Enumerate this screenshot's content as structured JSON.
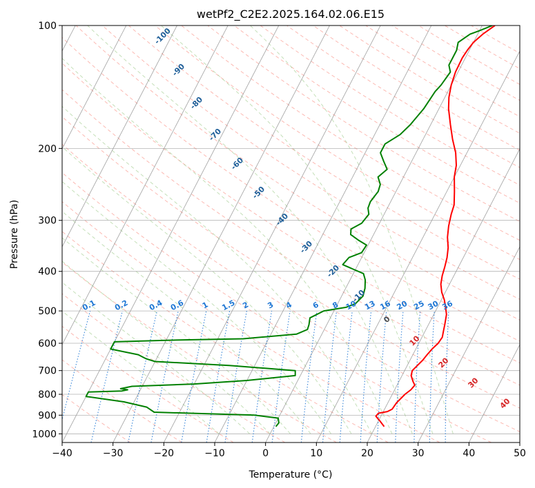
{
  "chart_data": {
    "type": "line",
    "title": "wetPf2_C2E2.2025.164.02.06.E15",
    "xlabel": "Temperature (°C)",
    "ylabel": "Pressure (hPa)",
    "xlim": [
      -40,
      50
    ],
    "ylim": [
      1050,
      100
    ],
    "y_scale": "log",
    "x_ticks": [
      "−40",
      "−30",
      "−20",
      "−10",
      "0",
      "10",
      "20",
      "30",
      "40",
      "50"
    ],
    "x_tick_values": [
      -40,
      -30,
      -20,
      -10,
      0,
      10,
      20,
      30,
      40,
      50
    ],
    "y_ticks": [
      "100",
      "200",
      "300",
      "400",
      "500",
      "600",
      "700",
      "800",
      "900",
      "1000"
    ],
    "y_tick_values": [
      100,
      200,
      300,
      400,
      500,
      600,
      700,
      800,
      900,
      1000
    ],
    "grid": true,
    "series": [
      {
        "color": "#ff0000",
        "points": [
          [
            21.7,
            960
          ],
          [
            20.3,
            930
          ],
          [
            19.0,
            905
          ],
          [
            19.2,
            890
          ],
          [
            20.8,
            882
          ],
          [
            21.5,
            870
          ],
          [
            21.7,
            840
          ],
          [
            22.5,
            800
          ],
          [
            23.2,
            780
          ],
          [
            23.5,
            760
          ],
          [
            22.8,
            745
          ],
          [
            21.8,
            720
          ],
          [
            21.5,
            700
          ],
          [
            22.0,
            680
          ],
          [
            22.5,
            660
          ],
          [
            22.8,
            640
          ],
          [
            23.2,
            620
          ],
          [
            23.8,
            600
          ],
          [
            24.0,
            580
          ],
          [
            23.6,
            560
          ],
          [
            23.2,
            540
          ],
          [
            22.5,
            510
          ],
          [
            21.6,
            490
          ],
          [
            20.6,
            470
          ],
          [
            19.3,
            450
          ],
          [
            18.3,
            430
          ],
          [
            17.7,
            410
          ],
          [
            17.3,
            390
          ],
          [
            16.8,
            370
          ],
          [
            16.0,
            350
          ],
          [
            14.8,
            330
          ],
          [
            13.9,
            310
          ],
          [
            13.2,
            290
          ],
          [
            12.8,
            275
          ],
          [
            11.5,
            255
          ],
          [
            10.0,
            235
          ],
          [
            9.2,
            220
          ],
          [
            7.8,
            205
          ],
          [
            5.8,
            190
          ],
          [
            3.9,
            175
          ],
          [
            1.9,
            160
          ],
          [
            0.8,
            150
          ],
          [
            0.0,
            140
          ],
          [
            -0.5,
            130
          ],
          [
            -0.6,
            120
          ],
          [
            -0.4,
            115
          ],
          [
            0.0,
            110
          ],
          [
            1.0,
            105
          ],
          [
            2.5,
            100
          ]
        ]
      },
      {
        "color": "#008000",
        "points": [
          [
            0.4,
            960
          ],
          [
            0.6,
            940
          ],
          [
            0.0,
            915
          ],
          [
            -5.0,
            900
          ],
          [
            -25.0,
            885
          ],
          [
            -27.0,
            860
          ],
          [
            -32.0,
            835
          ],
          [
            -40.0,
            810
          ],
          [
            -40.0,
            790
          ],
          [
            -33.5,
            785
          ],
          [
            -32.5,
            780
          ],
          [
            -34.0,
            775
          ],
          [
            -32.0,
            765
          ],
          [
            -20.0,
            755
          ],
          [
            -10.0,
            740
          ],
          [
            -1.0,
            720
          ],
          [
            -1.5,
            700
          ],
          [
            -15.0,
            680
          ],
          [
            -30.0,
            665
          ],
          [
            -32.0,
            655
          ],
          [
            -34.0,
            640
          ],
          [
            -40.0,
            620
          ],
          [
            -40.0,
            595
          ],
          [
            -30.0,
            590
          ],
          [
            -15.0,
            585
          ],
          [
            -5.0,
            570
          ],
          [
            -3.3,
            555
          ],
          [
            -3.5,
            540
          ],
          [
            -4.0,
            520
          ],
          [
            -2.0,
            500
          ],
          [
            2.0,
            490
          ],
          [
            3.5,
            480
          ],
          [
            4.2,
            460
          ],
          [
            3.8,
            440
          ],
          [
            3.0,
            420
          ],
          [
            2.0,
            405
          ],
          [
            -0.5,
            395
          ],
          [
            -3.0,
            385
          ],
          [
            -2.5,
            370
          ],
          [
            -0.5,
            360
          ],
          [
            -0.3,
            345
          ],
          [
            -2.5,
            335
          ],
          [
            -4.5,
            325
          ],
          [
            -5.0,
            315
          ],
          [
            -3.5,
            305
          ],
          [
            -3.0,
            290
          ],
          [
            -3.8,
            280
          ],
          [
            -4.0,
            270
          ],
          [
            -3.5,
            255
          ],
          [
            -3.8,
            245
          ],
          [
            -5.0,
            235
          ],
          [
            -4.0,
            225
          ],
          [
            -5.5,
            215
          ],
          [
            -7.0,
            205
          ],
          [
            -7.0,
            195
          ],
          [
            -5.0,
            185
          ],
          [
            -4.0,
            175
          ],
          [
            -3.0,
            160
          ],
          [
            -2.5,
            145
          ],
          [
            -2.0,
            140
          ],
          [
            -1.5,
            130
          ],
          [
            -2.5,
            125
          ],
          [
            -2.5,
            115
          ],
          [
            -3.0,
            110
          ],
          [
            -1.5,
            105
          ],
          [
            0.0,
            103
          ],
          [
            2.0,
            100
          ]
        ]
      }
    ],
    "dry_adiabat_labels": [
      "-100",
      "-90",
      "-80",
      "-70",
      "-60",
      "-50",
      "-40",
      "-30",
      "-20",
      "-10",
      "0",
      "10",
      "20",
      "30",
      "40"
    ],
    "mixing_ratio_labels": [
      "0.1",
      "0.2",
      "0.4",
      "0.6",
      "1",
      "1.5",
      "2",
      "3",
      "4",
      "6",
      "8",
      "10",
      "13",
      "16",
      "20",
      "25",
      "30",
      "36"
    ],
    "colors": {
      "temperature": "#ff0000",
      "dewpoint": "#008000",
      "dry_adiabat": "#fa8072",
      "moist_adiabat": "#93c47d",
      "mixing_ratio": "#1f77d4",
      "isotherm": "#808080",
      "isobar": "#a0a0a0",
      "adiabat_label_cold": "#1f5f99",
      "adiabat_label_warm": "#d62728"
    }
  }
}
